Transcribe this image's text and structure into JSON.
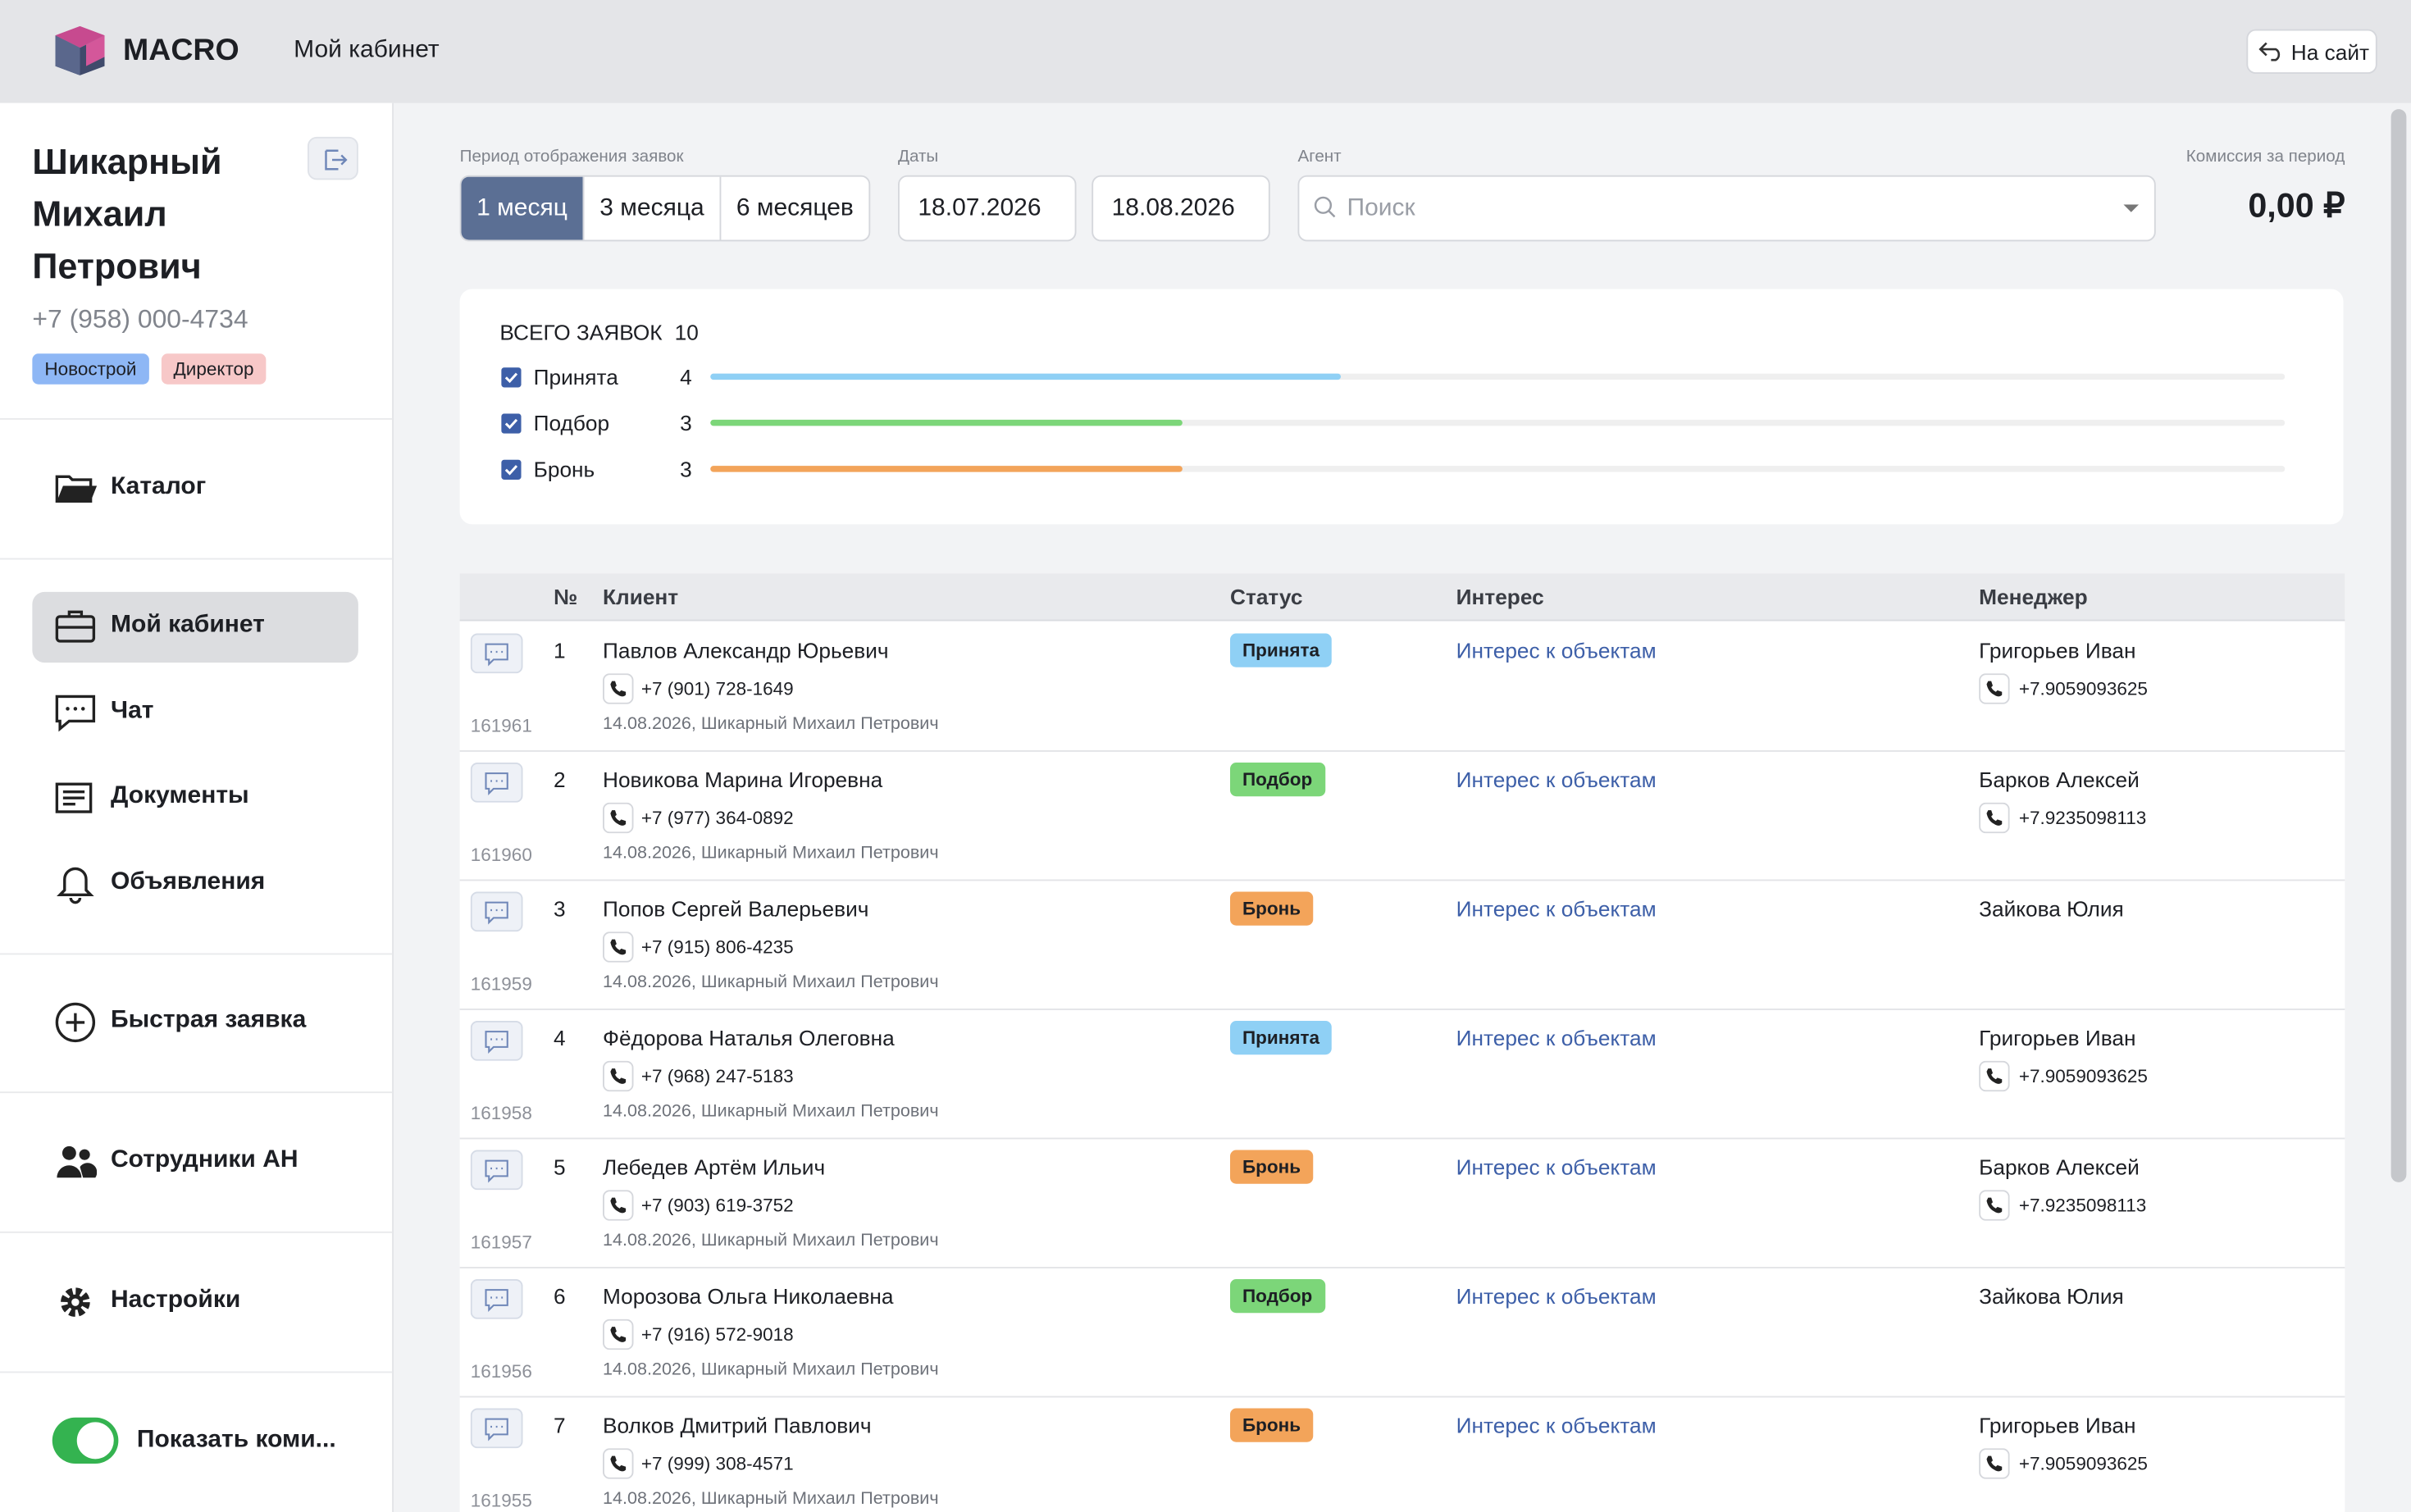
{
  "header": {
    "logo": "MACRO",
    "title": "Мой кабинет",
    "site_button": "На сайт"
  },
  "profile": {
    "name_lines": [
      "Шикарный",
      "Михаил",
      "Петрович"
    ],
    "phone": "+7 (958) 000-4734",
    "tags": [
      "Новострой",
      "Директор"
    ]
  },
  "nav": [
    {
      "label": "Каталог"
    },
    {
      "label": "Мой кабинет",
      "active": true
    },
    {
      "label": "Чат"
    },
    {
      "label": "Документы"
    },
    {
      "label": "Объявления"
    },
    {
      "label": "Быстрая заявка"
    },
    {
      "label": "Сотрудники АН"
    },
    {
      "label": "Настройки"
    }
  ],
  "commission_toggle": {
    "label": "Показать коми...",
    "on": true
  },
  "filters": {
    "period_label": "Период отображения заявок",
    "periods": [
      "1 месяц",
      "3 месяца",
      "6 месяцев"
    ],
    "active_period": 0,
    "dates_label": "Даты",
    "date_from": "18.07.2026",
    "date_to": "18.08.2026",
    "agent_label": "Агент",
    "agent_placeholder": "Поиск",
    "commission_label": "Комиссия за период",
    "commission_value": "0,00 ₽"
  },
  "summary": {
    "title": "ВСЕГО ЗАЯВОК",
    "total": 10,
    "items": [
      {
        "label": "Принята",
        "count": 4,
        "color": "#8fd0f5",
        "checked": true
      },
      {
        "label": "Подбор",
        "count": 3,
        "color": "#7cd679",
        "checked": true
      },
      {
        "label": "Бронь",
        "count": 3,
        "color": "#f3a45a",
        "checked": true
      }
    ]
  },
  "table": {
    "columns": [
      "№",
      "Клиент",
      "Статус",
      "Интерес",
      "Менеджер"
    ],
    "rows": [
      {
        "id": "161961",
        "num": "1",
        "client": "Павлов Александр Юрьевич",
        "phone": "+7 (901) 728-1649",
        "created": "14.08.2026, Шикарный Михаил Петрович",
        "status": "Принята",
        "interest": "Интерес к объектам",
        "manager": "Григорьев Иван",
        "manager_phone": "+7.9059093625"
      },
      {
        "id": "161960",
        "num": "2",
        "client": "Новикова Марина Игоревна",
        "phone": "+7 (977) 364-0892",
        "created": "14.08.2026, Шикарный Михаил Петрович",
        "status": "Подбор",
        "interest": "Интерес к объектам",
        "manager": "Барков Алексей",
        "manager_phone": "+7.9235098113"
      },
      {
        "id": "161959",
        "num": "3",
        "client": "Попов Сергей Валерьевич",
        "phone": "+7 (915) 806-4235",
        "created": "14.08.2026, Шикарный Михаил Петрович",
        "status": "Бронь",
        "interest": "Интерес к объектам",
        "manager": "Зайкова Юлия",
        "manager_phone": null
      },
      {
        "id": "161958",
        "num": "4",
        "client": "Фёдорова Наталья Олеговна",
        "phone": "+7 (968) 247-5183",
        "created": "14.08.2026, Шикарный Михаил Петрович",
        "status": "Принята",
        "interest": "Интерес к объектам",
        "manager": "Григорьев Иван",
        "manager_phone": "+7.9059093625"
      },
      {
        "id": "161957",
        "num": "5",
        "client": "Лебедев Артём Ильич",
        "phone": "+7 (903) 619-3752",
        "created": "14.08.2026, Шикарный Михаил Петрович",
        "status": "Бронь",
        "interest": "Интерес к объектам",
        "manager": "Барков Алексей",
        "manager_phone": "+7.9235098113"
      },
      {
        "id": "161956",
        "num": "6",
        "client": "Морозова Ольга Николаевна",
        "phone": "+7 (916) 572-9018",
        "created": "14.08.2026, Шикарный Михаил Петрович",
        "status": "Подбор",
        "interest": "Интерес к объектам",
        "manager": "Зайкова Юлия",
        "manager_phone": null
      },
      {
        "id": "161955",
        "num": "7",
        "client": "Волков Дмитрий Павлович",
        "phone": "+7 (999) 308-4571",
        "created": "14.08.2026, Шикарный Михаил Петрович",
        "status": "Бронь",
        "interest": "Интерес к объектам",
        "manager": "Григорьев Иван",
        "manager_phone": "+7.9059093625"
      }
    ]
  }
}
